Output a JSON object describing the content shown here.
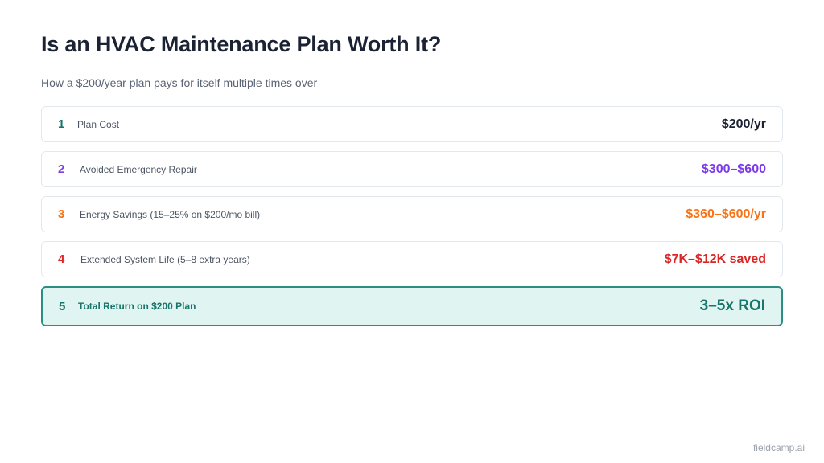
{
  "title": "Is an HVAC Maintenance Plan Worth It?",
  "subtitle": "How a $200/year plan pays for itself multiple times over",
  "rows": [
    {
      "num": "1",
      "label": "Plan Cost",
      "value": "$200/yr",
      "num_color": "#17756a",
      "value_color": "#1a2233"
    },
    {
      "num": "2",
      "label": "Avoided Emergency Repair",
      "value": "$300–$600",
      "num_color": "#7c3aed",
      "value_color": "#7c3aed"
    },
    {
      "num": "3",
      "label": "Energy Savings (15–25% on $200/mo bill)",
      "value": "$360–$600/yr",
      "num_color": "#f97316",
      "value_color": "#f97316"
    },
    {
      "num": "4",
      "label": "Extended System Life (5–8 extra years)",
      "value": "$7K–$12K saved",
      "num_color": "#dc2626",
      "value_color": "#dc2626"
    },
    {
      "num": "5",
      "label": "Total Return on $200 Plan",
      "value": "3–5x ROI",
      "num_color": "#17756a",
      "value_color": "#17756a"
    }
  ],
  "footer": "fieldcamp.ai"
}
